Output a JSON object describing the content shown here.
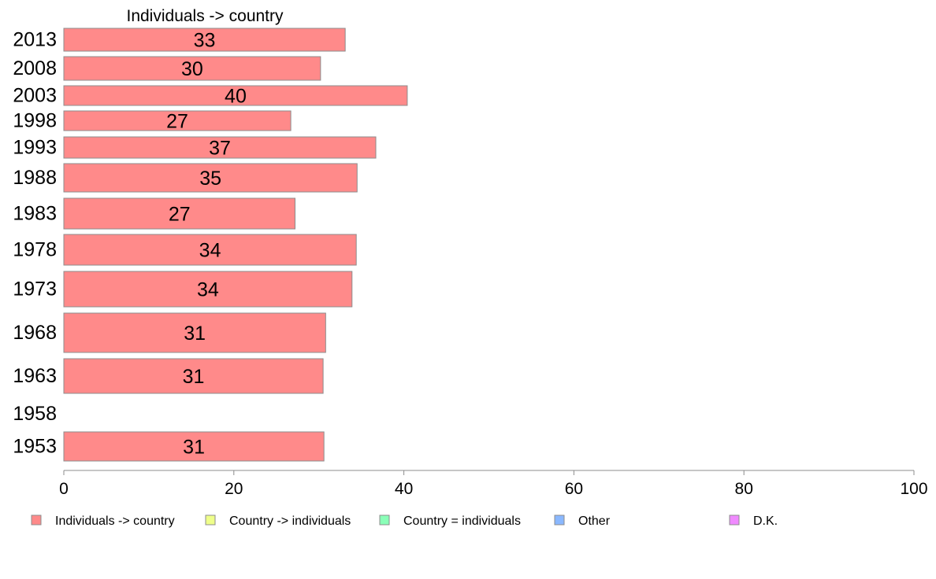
{
  "chart_data": {
    "type": "bar",
    "orientation": "horizontal",
    "title": "Individuals -> country",
    "categories": [
      "2013",
      "2008",
      "2003",
      "1998",
      "1993",
      "1988",
      "1983",
      "1978",
      "1973",
      "1968",
      "1963",
      "1958",
      "1953"
    ],
    "series": [
      {
        "name": "Individuals -> country",
        "color": "#ff8a8a",
        "values": [
          33.1,
          30.2,
          40.4,
          26.7,
          36.7,
          34.5,
          27.2,
          34.4,
          33.9,
          30.8,
          30.5,
          null,
          30.6
        ],
        "labels": [
          "33",
          "30",
          "40",
          "27",
          "37",
          "35",
          "27",
          "34",
          "34",
          "31",
          "31",
          "",
          "31"
        ]
      }
    ],
    "xlim": [
      0,
      100
    ],
    "xticks": [
      "0",
      "20",
      "40",
      "60",
      "80",
      "100"
    ],
    "grid": false,
    "legend_position": "bottom",
    "legend": [
      {
        "label": "Individuals -> country",
        "color": "#ff8a8a"
      },
      {
        "label": "Country -> individuals",
        "color": "#efff8a"
      },
      {
        "label": "Country = individuals",
        "color": "#8affb8"
      },
      {
        "label": "Other",
        "color": "#8ab8ff"
      },
      {
        "label": "D.K.",
        "color": "#f08aff"
      }
    ]
  }
}
